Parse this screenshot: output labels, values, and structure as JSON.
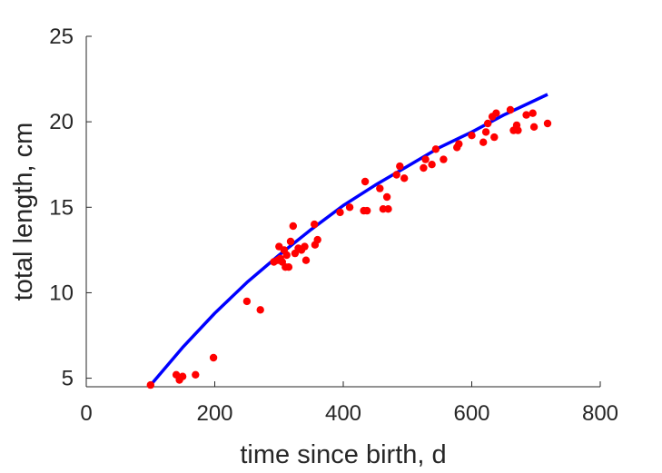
{
  "chart_data": {
    "type": "scatter",
    "title": "",
    "xlabel": "time since birth, d",
    "ylabel": "total length, cm",
    "xlim": [
      0,
      800
    ],
    "ylim": [
      4.5,
      25
    ],
    "xticks": [
      0,
      200,
      400,
      600,
      800
    ],
    "yticks": [
      5,
      10,
      15,
      20,
      25
    ],
    "x_tick_labels": [
      "0",
      "200",
      "400",
      "600",
      "800"
    ],
    "y_tick_labels": [
      "5",
      "10",
      "15",
      "20",
      "25"
    ],
    "grid": false,
    "legend": "none",
    "series": [
      {
        "type": "scatter",
        "color": "#ff0000",
        "points": [
          [
            100,
            4.6
          ],
          [
            140,
            5.2
          ],
          [
            145,
            4.9
          ],
          [
            150,
            5.1
          ],
          [
            170,
            5.2
          ],
          [
            198,
            6.2
          ],
          [
            250,
            9.5
          ],
          [
            271,
            9.0
          ],
          [
            292,
            11.8
          ],
          [
            298,
            11.9
          ],
          [
            300,
            12.7
          ],
          [
            302,
            12.0
          ],
          [
            305,
            11.8
          ],
          [
            308,
            12.5
          ],
          [
            310,
            11.5
          ],
          [
            312,
            12.2
          ],
          [
            315,
            11.5
          ],
          [
            318,
            13.0
          ],
          [
            322,
            13.9
          ],
          [
            325,
            12.3
          ],
          [
            330,
            12.6
          ],
          [
            335,
            12.5
          ],
          [
            340,
            12.7
          ],
          [
            342,
            11.9
          ],
          [
            355,
            14.0
          ],
          [
            356,
            12.8
          ],
          [
            360,
            13.1
          ],
          [
            395,
            14.7
          ],
          [
            410,
            15.0
          ],
          [
            432,
            14.8
          ],
          [
            434,
            16.5
          ],
          [
            437,
            14.8
          ],
          [
            457,
            16.1
          ],
          [
            462,
            14.9
          ],
          [
            468,
            15.6
          ],
          [
            470,
            14.9
          ],
          [
            483,
            16.9
          ],
          [
            488,
            17.4
          ],
          [
            495,
            16.7
          ],
          [
            525,
            17.3
          ],
          [
            528,
            17.8
          ],
          [
            538,
            17.5
          ],
          [
            544,
            18.4
          ],
          [
            556,
            17.8
          ],
          [
            577,
            18.5
          ],
          [
            580,
            18.7
          ],
          [
            600,
            19.2
          ],
          [
            618,
            18.8
          ],
          [
            622,
            19.4
          ],
          [
            625,
            19.9
          ],
          [
            632,
            20.3
          ],
          [
            635,
            19.1
          ],
          [
            638,
            20.5
          ],
          [
            660,
            20.7
          ],
          [
            665,
            19.5
          ],
          [
            670,
            19.8
          ],
          [
            672,
            19.5
          ],
          [
            685,
            20.4
          ],
          [
            695,
            20.5
          ],
          [
            697,
            19.7
          ],
          [
            718,
            19.9
          ]
        ]
      },
      {
        "type": "line",
        "color": "#0000ff",
        "points": [
          [
            98,
            4.5
          ],
          [
            150,
            6.8
          ],
          [
            200,
            8.8
          ],
          [
            250,
            10.6
          ],
          [
            300,
            12.2
          ],
          [
            350,
            13.7
          ],
          [
            400,
            15.1
          ],
          [
            450,
            16.3
          ],
          [
            500,
            17.4
          ],
          [
            550,
            18.5
          ],
          [
            600,
            19.4
          ],
          [
            650,
            20.4
          ],
          [
            718,
            21.6
          ]
        ]
      }
    ]
  }
}
